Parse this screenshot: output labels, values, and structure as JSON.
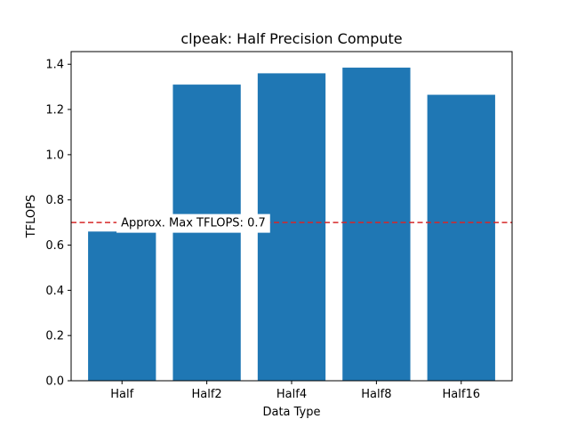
{
  "chart_data": {
    "type": "bar",
    "title": "clpeak: Half Precision Compute",
    "xlabel": "Data Type",
    "ylabel": "TFLOPS",
    "categories": [
      "Half",
      "Half2",
      "Half4",
      "Half8",
      "Half16"
    ],
    "values": [
      0.66,
      1.31,
      1.36,
      1.385,
      1.265
    ],
    "ylim": [
      0,
      1.456
    ],
    "yticks": [
      0.0,
      0.2,
      0.4,
      0.6,
      0.8,
      1.0,
      1.2,
      1.4
    ],
    "ytick_labels": [
      "0.0",
      "0.2",
      "0.4",
      "0.6",
      "0.8",
      "1.0",
      "1.2",
      "1.4"
    ],
    "grid": false,
    "bar_color": "#1f77b4",
    "reference_line": {
      "value": 0.7,
      "color": "#d62728",
      "style": "dashed",
      "label": "Approx. Max TFLOPS: 0.7"
    }
  }
}
